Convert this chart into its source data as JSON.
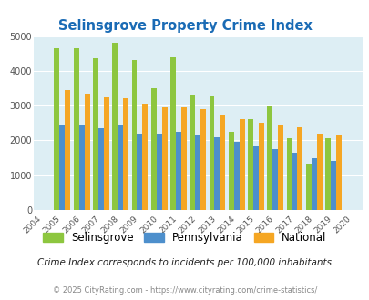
{
  "title": "Selinsgrove Property Crime Index",
  "years": [
    2004,
    2005,
    2006,
    2007,
    2008,
    2009,
    2010,
    2011,
    2012,
    2013,
    2014,
    2015,
    2016,
    2017,
    2018,
    2019,
    2020
  ],
  "selinsgrove": [
    null,
    4650,
    4650,
    4350,
    4800,
    4300,
    3500,
    4400,
    3300,
    3270,
    2250,
    2620,
    2980,
    2060,
    1330,
    2060,
    null
  ],
  "pennsylvania": [
    null,
    2420,
    2450,
    2350,
    2420,
    2200,
    2200,
    2250,
    2150,
    2080,
    1970,
    1820,
    1750,
    1650,
    1480,
    1420,
    null
  ],
  "national": [
    null,
    3450,
    3350,
    3250,
    3220,
    3050,
    2950,
    2950,
    2900,
    2750,
    2620,
    2500,
    2450,
    2380,
    2200,
    2140,
    null
  ],
  "bar_width": 0.28,
  "selinsgrove_color": "#8dc63f",
  "pennsylvania_color": "#4d8fcc",
  "national_color": "#f5a623",
  "bg_color": "#ddeef4",
  "ylim": [
    0,
    5000
  ],
  "yticks": [
    0,
    1000,
    2000,
    3000,
    4000,
    5000
  ],
  "legend_labels": [
    "Selinsgrove",
    "Pennsylvania",
    "National"
  ],
  "footnote1": "Crime Index corresponds to incidents per 100,000 inhabitants",
  "footnote2": "© 2025 CityRating.com - https://www.cityrating.com/crime-statistics/"
}
